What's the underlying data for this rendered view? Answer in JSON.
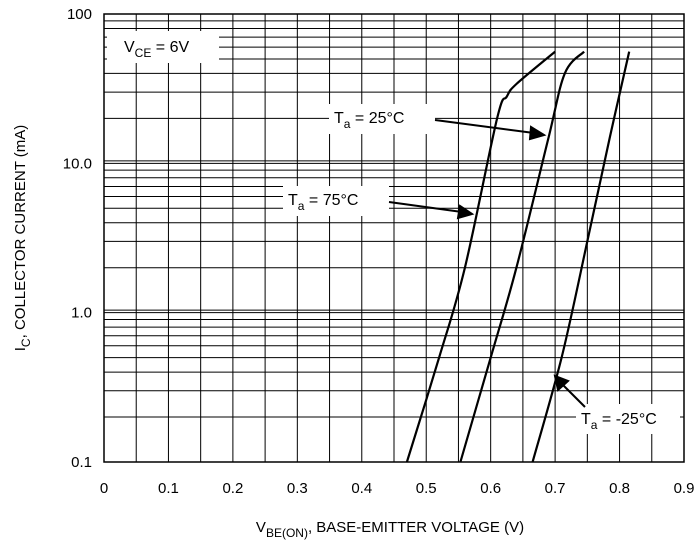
{
  "chart_data": {
    "type": "line",
    "xlabel": {
      "main": "V",
      "sub": "BE(ON)",
      "rest": ", BASE-EMITTER VOLTAGE (V)"
    },
    "ylabel": {
      "main": "I",
      "sub": "C",
      "rest": ", COLLECTOR CURRENT (mA)"
    },
    "x_ticks": [
      "0",
      "0.1",
      "0.2",
      "0.3",
      "0.4",
      "0.5",
      "0.6",
      "0.7",
      "0.8",
      "0.9"
    ],
    "y_ticks": [
      {
        "value": 0.1,
        "label": "0.1"
      },
      {
        "value": 1,
        "label": "1.0"
      },
      {
        "value": 10,
        "label": "10.0"
      },
      {
        "value": 100,
        "label": "100"
      }
    ],
    "xlim": [
      0,
      0.9
    ],
    "ylim": [
      0.1,
      100
    ],
    "y_scale": "log",
    "grid": true,
    "condition": {
      "main": "V",
      "sub": "CE",
      "rest": " = 6V"
    },
    "series": [
      {
        "name": {
          "main": "T",
          "sub": "a",
          "rest": " = 75°C"
        },
        "points": [
          [
            0.47,
            0.1
          ],
          [
            0.52,
            0.5
          ],
          [
            0.56,
            2
          ],
          [
            0.61,
            20
          ],
          [
            0.625,
            28
          ],
          [
            0.64,
            34
          ],
          [
            0.7,
            56
          ]
        ]
      },
      {
        "name": {
          "main": "T",
          "sub": "a",
          "rest": " = 25°C"
        },
        "points": [
          [
            0.553,
            0.1
          ],
          [
            0.6,
            0.5
          ],
          [
            0.64,
            2
          ],
          [
            0.69,
            15
          ],
          [
            0.715,
            40
          ],
          [
            0.745,
            56
          ]
        ]
      },
      {
        "name": {
          "main": "T",
          "sub": "a",
          "rest": " = -25°C"
        },
        "points": [
          [
            0.665,
            0.1
          ],
          [
            0.71,
            0.5
          ],
          [
            0.75,
            3
          ],
          [
            0.785,
            15
          ],
          [
            0.815,
            56
          ]
        ]
      }
    ]
  }
}
